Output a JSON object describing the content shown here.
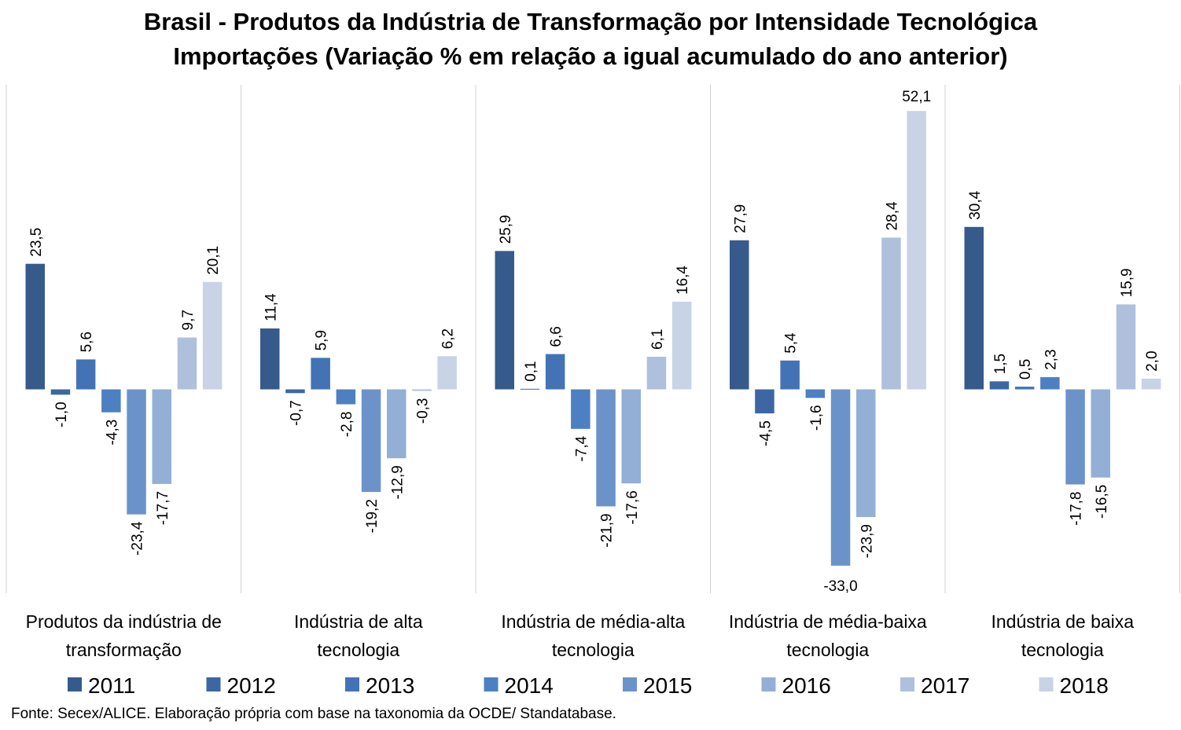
{
  "chart_data": {
    "type": "bar",
    "title": [
      "Brasil - Produtos da Indústria de Transformação por Intensidade Tecnológica",
      "Importações (Variação % em relação a igual acumulado do ano anterior)"
    ],
    "categories": [
      [
        "Produtos da indústria de",
        "transformação"
      ],
      [
        "Indústria de alta",
        "tecnologia"
      ],
      [
        "Indústria de média-alta",
        "tecnologia"
      ],
      [
        "Indústria de média-baixa",
        "tecnologia"
      ],
      [
        "Indústria de baixa",
        "tecnologia"
      ]
    ],
    "series": [
      {
        "name": "2011",
        "color": "#375A8C",
        "values": [
          23.5,
          11.4,
          25.9,
          27.9,
          30.4
        ],
        "labels": [
          "23,5",
          "11,4",
          "25,9",
          "27,9",
          "30,4"
        ]
      },
      {
        "name": "2012",
        "color": "#3C67A3",
        "values": [
          -1.0,
          -0.7,
          0.1,
          -4.5,
          1.5
        ],
        "labels": [
          "-1,0",
          "-0,7",
          "0,1",
          "-4,5",
          "1,5"
        ]
      },
      {
        "name": "2013",
        "color": "#4373B5",
        "values": [
          5.6,
          5.9,
          6.6,
          5.4,
          0.5
        ],
        "labels": [
          "5,6",
          "5,9",
          "6,6",
          "5,4",
          "0,5"
        ]
      },
      {
        "name": "2014",
        "color": "#4D80C2",
        "values": [
          -4.3,
          -2.8,
          -7.4,
          -1.6,
          2.3
        ],
        "labels": [
          "-4,3",
          "-2,8",
          "-7,4",
          "-1,6",
          "2,3"
        ]
      },
      {
        "name": "2015",
        "color": "#6B93CA",
        "values": [
          -23.4,
          -19.2,
          -21.9,
          -33.0,
          -17.8
        ],
        "labels": [
          "-23,4",
          "-19,2",
          "-21,9",
          "-33,0",
          "-17,8"
        ]
      },
      {
        "name": "2016",
        "color": "#94AFD6",
        "values": [
          -17.7,
          -12.9,
          -17.6,
          -23.9,
          -16.5
        ],
        "labels": [
          "-17,7",
          "-12,9",
          "-17,6",
          "-23,9",
          "-16,5"
        ]
      },
      {
        "name": "2017",
        "color": "#AFC0DD",
        "values": [
          9.7,
          -0.3,
          6.1,
          28.4,
          15.9
        ],
        "labels": [
          "9,7",
          "-0,3",
          "6,1",
          "28,4",
          "15,9"
        ]
      },
      {
        "name": "2018",
        "color": "#C9D3E6",
        "values": [
          20.1,
          6.2,
          16.4,
          52.1,
          2.0
        ],
        "labels": [
          "20,1",
          "6,2",
          "16,4",
          "52,1",
          "2,0"
        ]
      }
    ],
    "horizontal_label_series": {
      "category_index": 3,
      "series_indices": [
        4,
        7
      ]
    },
    "ylim": [
      -38,
      57
    ],
    "grid": false,
    "legend_position": "bottom",
    "source": "Fonte: Secex/ALICE. Elaboração própria com base na taxonomia da OCDE/ Standatabase."
  }
}
